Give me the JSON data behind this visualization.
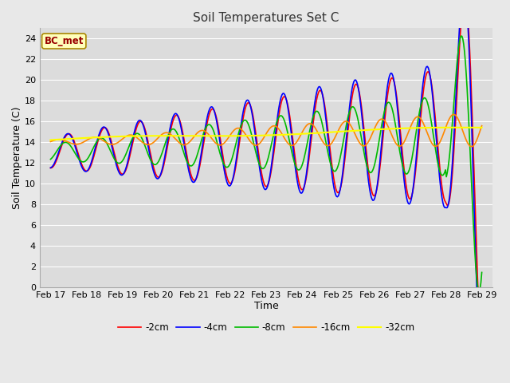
{
  "title": "Soil Temperatures Set C",
  "xlabel": "Time",
  "ylabel": "Soil Temperature (C)",
  "annotation": "BC_met",
  "ylim": [
    0,
    25
  ],
  "yticks": [
    0,
    2,
    4,
    6,
    8,
    10,
    12,
    14,
    16,
    18,
    20,
    22,
    24
  ],
  "x_labels": [
    "Feb 17",
    "Feb 18",
    "Feb 19",
    "Feb 20",
    "Feb 21",
    "Feb 22",
    "Feb 23",
    "Feb 24",
    "Feb 25",
    "Feb 26",
    "Feb 27",
    "Feb 28",
    "Feb 29"
  ],
  "bg_color": "#dcdcdc",
  "grid_color": "#ffffff",
  "fig_bg": "#e8e8e8",
  "series_order": [
    "-2cm",
    "-4cm",
    "-8cm",
    "-16cm",
    "-32cm"
  ],
  "series_colors": [
    "#ff0000",
    "#0000ff",
    "#00bb00",
    "#ff8800",
    "#ffff00"
  ],
  "series_lw": [
    1.2,
    1.2,
    1.2,
    1.2,
    1.5
  ]
}
